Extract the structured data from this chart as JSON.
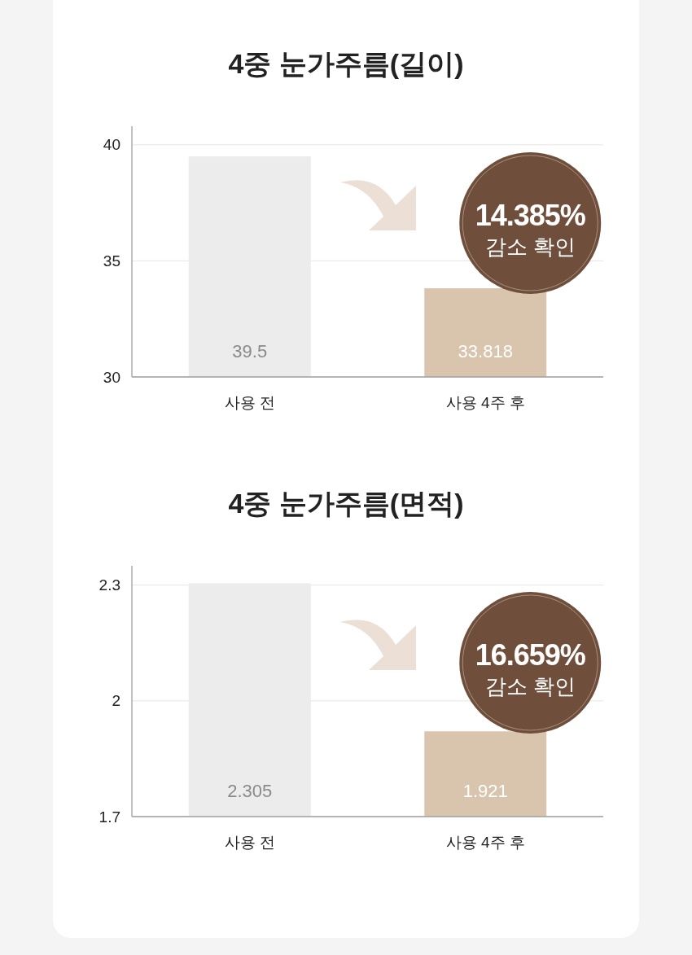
{
  "chart_data": [
    {
      "type": "bar",
      "title": "4중 눈가주름(길이)",
      "categories": [
        "사용 전",
        "사용 4주 후"
      ],
      "values": [
        39.5,
        33.818
      ],
      "colors": [
        "#ececec",
        "#d9c5ae"
      ],
      "ylim": [
        30,
        40.8
      ],
      "yticks": [
        30,
        35,
        40
      ],
      "grid": "y",
      "data_labels": true,
      "annotations": [
        "14.385%",
        "감소 확인"
      ]
    },
    {
      "type": "bar",
      "title": "4중 눈가주름(면적)",
      "categories": [
        "사용 전",
        "사용 4주 후"
      ],
      "values": [
        2.305,
        1.921
      ],
      "colors": [
        "#ececec",
        "#d9c5ae"
      ],
      "ylim": [
        1.7,
        2.35
      ],
      "yticks": [
        1.7,
        2,
        2.3
      ],
      "grid": "y",
      "data_labels": true,
      "annotations": [
        "16.659%",
        "감소 확인"
      ]
    }
  ]
}
